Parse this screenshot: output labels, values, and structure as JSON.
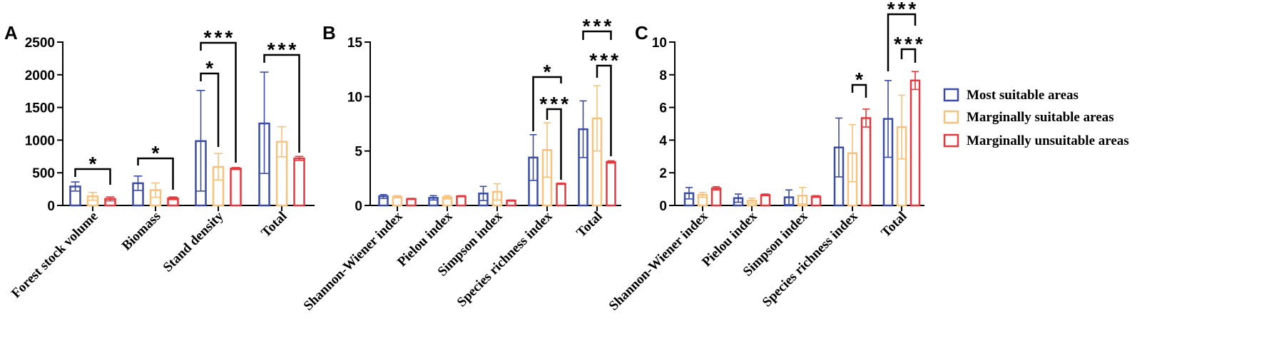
{
  "chart_data": [
    {
      "panel": "A",
      "type": "bar",
      "categories": [
        "Forest stock volume",
        "Biomass",
        "Stand density",
        "Total"
      ],
      "ylim": [
        0,
        2500
      ],
      "yticks": [
        0,
        500,
        1000,
        1500,
        2000,
        2500
      ],
      "series": [
        {
          "name": "Most suitable areas",
          "color": "#3B4CA6",
          "values": [
            290,
            340,
            985,
            1255
          ],
          "error_low": [
            220,
            230,
            220,
            490
          ],
          "error_high": [
            360,
            450,
            1760,
            2040
          ]
        },
        {
          "name": "Marginally suitable areas",
          "color": "#F6C27D",
          "values": [
            140,
            235,
            590,
            975
          ],
          "error_low": [
            80,
            125,
            390,
            745
          ],
          "error_high": [
            200,
            345,
            795,
            1205
          ]
        },
        {
          "name": "Marginally unsuitable areas",
          "color": "#E6393F",
          "values": [
            100,
            110,
            565,
            720
          ],
          "error_low": [
            70,
            90,
            550,
            690
          ],
          "error_high": [
            130,
            130,
            580,
            750
          ]
        }
      ],
      "annotations": [
        {
          "category_index": 0,
          "series_pair": [
            0,
            2
          ],
          "label": "*"
        },
        {
          "category_index": 1,
          "series_pair": [
            0,
            2
          ],
          "label": "*"
        },
        {
          "category_index": 2,
          "series_pair": [
            0,
            1
          ],
          "label": "*"
        },
        {
          "category_index": 2,
          "series_pair": [
            0,
            2
          ],
          "label": "***"
        },
        {
          "category_index": 3,
          "series_pair": [
            0,
            2
          ],
          "label": "***"
        }
      ]
    },
    {
      "panel": "B",
      "type": "bar",
      "categories": [
        "Shannon-Wiener index",
        "Pielou index",
        "Simpson index",
        "Species richness index",
        "Total"
      ],
      "ylim": [
        0,
        15
      ],
      "yticks": [
        0,
        5,
        10,
        15
      ],
      "series": [
        {
          "name": "Most suitable areas",
          "color": "#3B4CA6",
          "values": [
            0.85,
            0.7,
            1.1,
            4.4,
            7.0
          ],
          "error_low": [
            0.65,
            0.5,
            0.45,
            2.3,
            4.4
          ],
          "error_high": [
            1.0,
            0.9,
            1.75,
            6.5,
            9.6
          ]
        },
        {
          "name": "Marginally suitable areas",
          "color": "#F6C27D",
          "values": [
            0.8,
            0.75,
            1.25,
            5.1,
            8.0
          ],
          "error_low": [
            0.7,
            0.6,
            0.5,
            2.6,
            5.0
          ],
          "error_high": [
            0.9,
            0.9,
            2.0,
            7.6,
            11.0
          ]
        },
        {
          "name": "Marginally unsuitable areas",
          "color": "#E6393F",
          "values": [
            0.6,
            0.85,
            0.45,
            2.0,
            4.0
          ],
          "error_low": [
            0.55,
            0.8,
            0.4,
            1.95,
            3.9
          ],
          "error_high": [
            0.65,
            0.9,
            0.5,
            2.05,
            4.1
          ]
        }
      ],
      "annotations": [
        {
          "category_index": 3,
          "series_pair": [
            0,
            2
          ],
          "label": "*"
        },
        {
          "category_index": 3,
          "series_pair": [
            1,
            2
          ],
          "label": "***"
        },
        {
          "category_index": 4,
          "series_pair": [
            0,
            2
          ],
          "label": "***"
        },
        {
          "category_index": 4,
          "series_pair": [
            1,
            2
          ],
          "label": "***"
        }
      ]
    },
    {
      "panel": "C",
      "type": "bar",
      "categories": [
        "Shannon-Wiener index",
        "Pielou index",
        "Simpson index",
        "Species richness index",
        "Total"
      ],
      "ylim": [
        0,
        10
      ],
      "yticks": [
        0,
        2,
        4,
        6,
        8,
        10
      ],
      "series": [
        {
          "name": "Most suitable areas",
          "color": "#3B4CA6",
          "values": [
            0.75,
            0.45,
            0.5,
            3.55,
            5.3
          ],
          "error_low": [
            0.4,
            0.2,
            0.05,
            1.75,
            2.95
          ],
          "error_high": [
            1.1,
            0.7,
            0.95,
            5.35,
            7.65
          ]
        },
        {
          "name": "Marginally suitable areas",
          "color": "#F6C27D",
          "values": [
            0.65,
            0.3,
            0.6,
            3.2,
            4.8
          ],
          "error_low": [
            0.5,
            0.15,
            0.1,
            1.45,
            2.85
          ],
          "error_high": [
            0.8,
            0.45,
            1.1,
            4.95,
            6.75
          ]
        },
        {
          "name": "Marginally unsuitable areas",
          "color": "#E6393F",
          "values": [
            1.05,
            0.65,
            0.55,
            5.35,
            7.65
          ],
          "error_low": [
            0.95,
            0.6,
            0.5,
            4.8,
            7.1
          ],
          "error_high": [
            1.15,
            0.7,
            0.6,
            5.9,
            8.2
          ]
        }
      ],
      "annotations": [
        {
          "category_index": 3,
          "series_pair": [
            1,
            2
          ],
          "label": "*"
        },
        {
          "category_index": 4,
          "series_pair": [
            0,
            2
          ],
          "label": "***"
        },
        {
          "category_index": 4,
          "series_pair": [
            1,
            2
          ],
          "label": "***"
        }
      ]
    }
  ]
}
